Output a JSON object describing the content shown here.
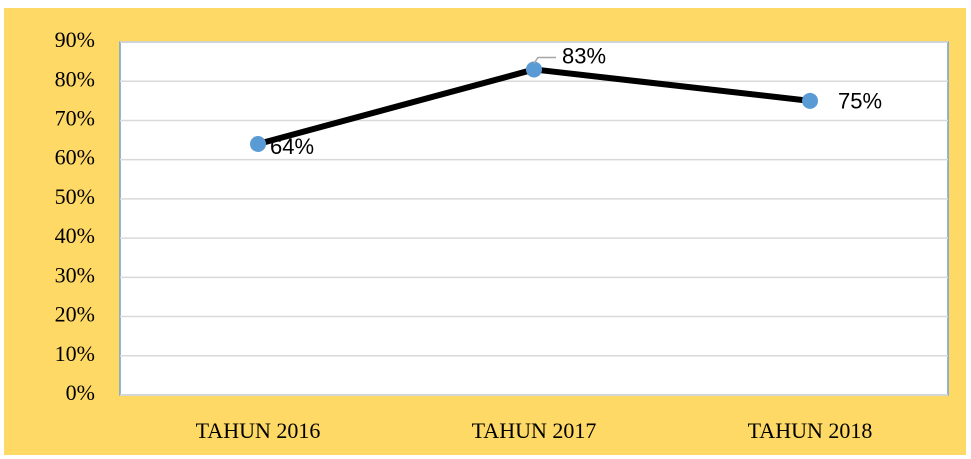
{
  "chart_data": {
    "type": "line",
    "categories": [
      "TAHUN 2016",
      "TAHUN 2017",
      "TAHUN 2018"
    ],
    "series": [
      {
        "color": "#000000",
        "marker_color": "#5b9bd5",
        "values": [
          64,
          83,
          75
        ]
      }
    ],
    "value_labels": [
      "64%",
      "83%",
      "75%"
    ],
    "ylim": [
      0,
      90
    ],
    "yticks": [
      {
        "value": 0,
        "label": "0%"
      },
      {
        "value": 10,
        "label": "10%"
      },
      {
        "value": 20,
        "label": "20%"
      },
      {
        "value": 30,
        "label": "30%"
      },
      {
        "value": 40,
        "label": "40%"
      },
      {
        "value": 50,
        "label": "50%"
      },
      {
        "value": 60,
        "label": "60%"
      },
      {
        "value": 70,
        "label": "70%"
      },
      {
        "value": 80,
        "label": "80%"
      },
      {
        "value": 90,
        "label": "90%"
      }
    ],
    "grid": true
  }
}
